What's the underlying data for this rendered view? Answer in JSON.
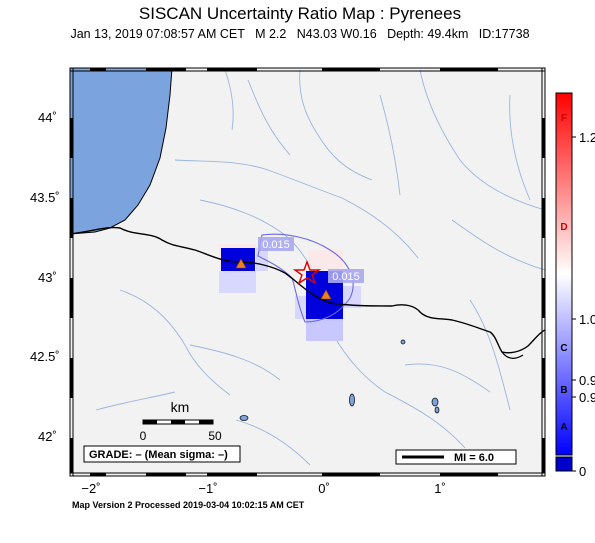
{
  "header": {
    "title": "SISCAN Uncertainty Ratio Map : Pyrenees",
    "subtitle": "Jan 13, 2019 07:08:57 AM CET   M 2.2   N43.03 W0.16   Depth: 49.4km   ID:17738"
  },
  "map": {
    "lat_ticks": [
      "44˚",
      "43.5˚",
      "43˚",
      "42.5˚",
      "42˚"
    ],
    "lon_ticks": [
      "−2˚",
      "−1˚",
      "0˚",
      "1˚"
    ],
    "contour_labels": [
      "0.015",
      "0.015"
    ],
    "epicenter": {
      "lat": 43.03,
      "lon": -0.16
    },
    "scale_bar": {
      "unit": "km",
      "tick_start": "0",
      "tick_end": "50"
    },
    "grade_text": "GRADE: – (Mean sigma: –)",
    "mi_legend": "MI = 6.0"
  },
  "colorbar": {
    "letters": [
      "F",
      "D",
      "C",
      "B",
      "A"
    ],
    "values": [
      "1.2",
      "1.0",
      "0.9",
      "0.9",
      "0"
    ],
    "colors": {
      "high": "#ff0000",
      "mid": "#ffffff",
      "low": "#0000ff",
      "bottom": "#0000cc"
    }
  },
  "footer": "Map Version 2 Processed 2019-03-04 10:02:15 AM CET"
}
